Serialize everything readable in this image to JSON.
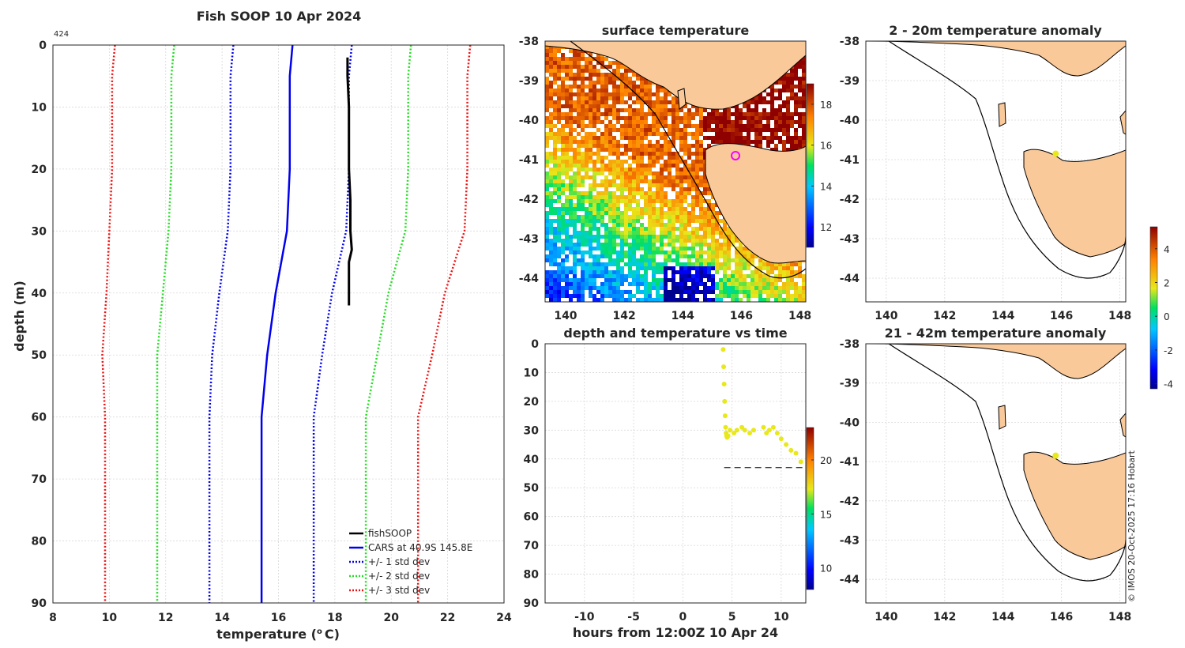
{
  "colors": {
    "fishsoop": "#000000",
    "cars": "#0000ee",
    "std1": "#0000ee",
    "std2": "#22dd22",
    "std3": "#ee1111",
    "land": "#f9c99a",
    "marker_yellow": "#e8e81a",
    "marker_magenta": "#ff00ff"
  },
  "chart_data": [
    {
      "type": "line",
      "title": "Fish SOOP 10 Apr 2024",
      "corner_label": "424",
      "xlabel": "temperature",
      "xlabel_unit_base": "C",
      "xlabel_unit_sup": "o",
      "ylabel": "depth (m)",
      "xlim": [
        8,
        24
      ],
      "ylim": [
        0,
        90
      ],
      "xticks": [
        8,
        10,
        12,
        14,
        16,
        18,
        20,
        22,
        24
      ],
      "yticks": [
        0,
        10,
        20,
        30,
        40,
        50,
        60,
        70,
        80,
        90
      ],
      "cars_depth": [
        0,
        5,
        10,
        20,
        30,
        40,
        50,
        60,
        70,
        80,
        90
      ],
      "cars_temp": [
        16.5,
        16.4,
        16.4,
        16.4,
        16.3,
        15.9,
        15.6,
        15.4,
        15.4,
        15.4,
        15.4
      ],
      "std_dev": [
        2.1,
        2.1,
        2.1,
        2.1,
        2.1,
        2.0,
        1.95,
        1.85,
        1.85,
        1.85,
        1.85
      ],
      "series": [
        {
          "name": "fishSOOP",
          "depth": [
            2,
            5,
            10,
            15,
            20,
            25,
            30,
            33,
            35,
            38,
            42
          ],
          "temp": [
            18.45,
            18.45,
            18.5,
            18.5,
            18.5,
            18.55,
            18.55,
            18.6,
            18.5,
            18.5,
            18.5
          ]
        },
        {
          "name": "CARS at 40.9S 145.8E"
        },
        {
          "name": "+/- 1 std dev"
        },
        {
          "name": "+/- 2 std dev"
        },
        {
          "name": "+/- 3 std dev"
        }
      ],
      "legend": "bottom-right"
    },
    {
      "type": "heatmap",
      "title": "surface temperature",
      "xlim": [
        139.3,
        148.2
      ],
      "ylim": [
        -44.6,
        -38
      ],
      "xticks": [
        140,
        142,
        144,
        146,
        148
      ],
      "yticks": [
        -38,
        -39,
        -40,
        -41,
        -42,
        -43,
        -44
      ],
      "colorbar_ticks": [
        12,
        14,
        16,
        18
      ],
      "colorbar_range": [
        11,
        19
      ],
      "marker": {
        "lon": 145.8,
        "lat": -40.9
      }
    },
    {
      "type": "scatter",
      "title": "depth and temperature vs time",
      "xlabel": "hours from 12:00Z 10 Apr 24",
      "xlim": [
        -14,
        12.5
      ],
      "ylim": [
        0,
        90
      ],
      "xticks": [
        -10,
        -5,
        0,
        5,
        10
      ],
      "yticks": [
        0,
        10,
        20,
        30,
        40,
        50,
        60,
        70,
        80,
        90
      ],
      "colorbar_ticks": [
        10,
        15,
        20
      ],
      "colorbar_range": [
        8,
        23
      ],
      "bottom_line_depth": 43,
      "x": [
        4.1,
        4.15,
        4.2,
        4.25,
        4.3,
        4.35,
        4.4,
        4.45,
        4.5,
        4.6,
        4.8,
        5.2,
        5.5,
        6.0,
        6.3,
        6.8,
        7.2,
        8.2,
        8.5,
        8.8,
        9.2,
        9.6,
        10.0,
        10.5,
        11.0,
        11.5,
        12.0
      ],
      "y": [
        2,
        8,
        14,
        20,
        25,
        29,
        31,
        32,
        32.5,
        32,
        30,
        31,
        30,
        29,
        30,
        31,
        30,
        29,
        31,
        30,
        29,
        31,
        33,
        35,
        37,
        38,
        41
      ]
    },
    {
      "type": "scatter",
      "title": "2 - 20m temperature anomaly",
      "xlim": [
        139.3,
        148.2
      ],
      "ylim": [
        -44.6,
        -38
      ],
      "xticks": [
        140,
        142,
        144,
        146,
        148
      ],
      "yticks": [
        -38,
        -39,
        -40,
        -41,
        -42,
        -43,
        -44
      ],
      "marker": {
        "lon": 145.8,
        "lat": -40.85
      }
    },
    {
      "type": "scatter",
      "title": "21 - 42m temperature anomaly",
      "xlim": [
        139.3,
        148.2
      ],
      "ylim": [
        -44.6,
        -38
      ],
      "xticks": [
        140,
        142,
        144,
        146,
        148
      ],
      "yticks": [
        -38,
        -39,
        -40,
        -41,
        -42,
        -43,
        -44
      ],
      "marker": {
        "lon": 145.8,
        "lat": -40.85
      },
      "colorbar_ticks": [
        -4,
        -2,
        0,
        2,
        4
      ],
      "colorbar_range": [
        -4.3,
        5.3
      ]
    }
  ],
  "footer_credit": "© IMOS 20-Oct-2025 17:16 Hobart"
}
